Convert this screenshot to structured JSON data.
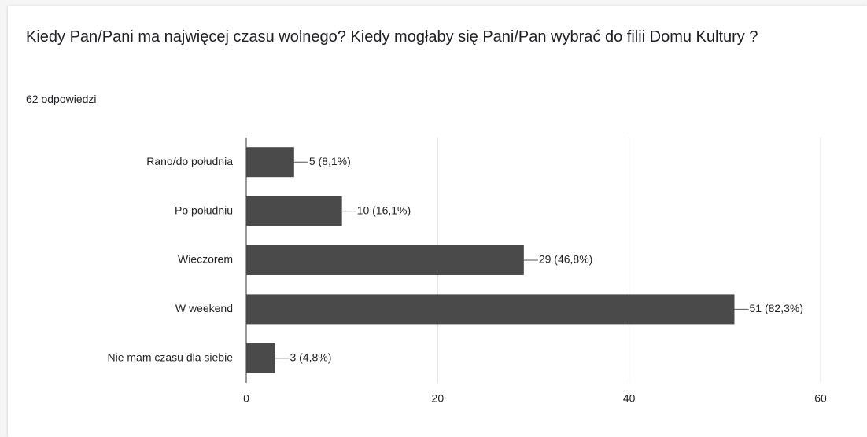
{
  "chart_data": {
    "type": "bar",
    "orientation": "horizontal",
    "title": "Kiedy Pan/Pani ma najwięcej czasu wolnego? Kiedy mogłaby się Pani/Pan wybrać do filii Domu Kultury ?",
    "subtitle": "62 odpowiedzi",
    "categories": [
      "Rano/do południa",
      "Po południu",
      "Wieczorem",
      "W weekend",
      "Nie mam czasu dla siebie"
    ],
    "values": [
      5,
      10,
      29,
      51,
      3
    ],
    "value_labels": [
      "5 (8,1%)",
      "10 (16,1%)",
      "29 (46,8%)",
      "51 (82,3%)",
      "3 (4,8%)"
    ],
    "color": "#4a4a4a",
    "xlim": [
      0,
      60
    ],
    "xticks": [
      0,
      20,
      40,
      60
    ],
    "grid": true
  }
}
